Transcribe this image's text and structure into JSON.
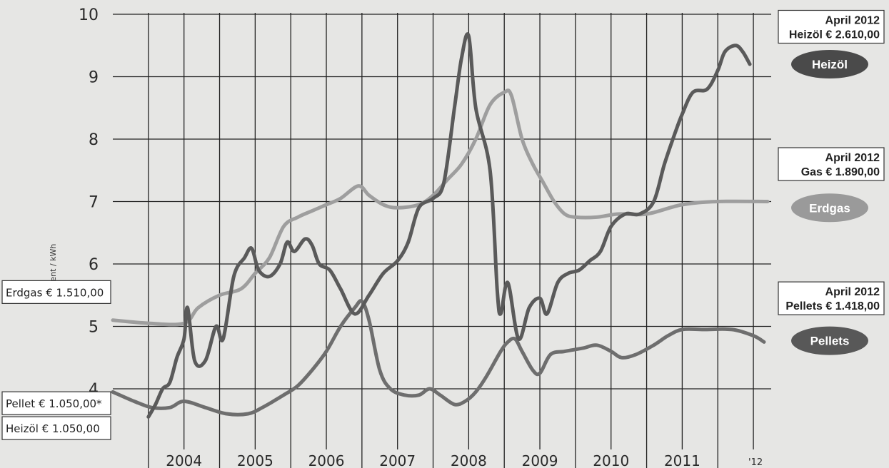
{
  "chart_data": {
    "type": "line",
    "ylabel": "Cent / kWh",
    "ylim": [
      3.5,
      10
    ],
    "y_ticks": [
      4,
      5,
      6,
      7,
      8,
      9,
      10
    ],
    "x_tick_labels": [
      "2004",
      "2005",
      "2006",
      "2007",
      "2008",
      "2009",
      "2010",
      "2011",
      "'12"
    ],
    "grid": true,
    "series": [
      {
        "name": "Heizöl",
        "color": "#5a5a5a",
        "points": [
          [
            2003.5,
            3.55
          ],
          [
            2003.6,
            3.75
          ],
          [
            2003.7,
            4.0
          ],
          [
            2003.8,
            4.1
          ],
          [
            2003.9,
            4.5
          ],
          [
            2004.0,
            4.8
          ],
          [
            2004.05,
            5.3
          ],
          [
            2004.15,
            4.45
          ],
          [
            2004.3,
            4.45
          ],
          [
            2004.45,
            5.0
          ],
          [
            2004.55,
            4.8
          ],
          [
            2004.7,
            5.8
          ],
          [
            2004.85,
            6.1
          ],
          [
            2004.95,
            6.25
          ],
          [
            2005.05,
            5.9
          ],
          [
            2005.2,
            5.8
          ],
          [
            2005.35,
            6.0
          ],
          [
            2005.45,
            6.35
          ],
          [
            2005.55,
            6.2
          ],
          [
            2005.7,
            6.4
          ],
          [
            2005.8,
            6.3
          ],
          [
            2005.9,
            6.0
          ],
          [
            2006.05,
            5.9
          ],
          [
            2006.2,
            5.6
          ],
          [
            2006.4,
            5.2
          ],
          [
            2006.6,
            5.5
          ],
          [
            2006.8,
            5.85
          ],
          [
            2007.0,
            6.05
          ],
          [
            2007.15,
            6.35
          ],
          [
            2007.3,
            6.9
          ],
          [
            2007.5,
            7.05
          ],
          [
            2007.65,
            7.3
          ],
          [
            2007.8,
            8.5
          ],
          [
            2007.9,
            9.3
          ],
          [
            2008.0,
            9.65
          ],
          [
            2008.1,
            8.5
          ],
          [
            2008.3,
            7.5
          ],
          [
            2008.4,
            5.6
          ],
          [
            2008.45,
            5.2
          ],
          [
            2008.55,
            5.7
          ],
          [
            2008.7,
            4.8
          ],
          [
            2008.85,
            5.3
          ],
          [
            2009.0,
            5.45
          ],
          [
            2009.1,
            5.2
          ],
          [
            2009.25,
            5.7
          ],
          [
            2009.4,
            5.85
          ],
          [
            2009.55,
            5.9
          ],
          [
            2009.7,
            6.05
          ],
          [
            2009.85,
            6.2
          ],
          [
            2010.0,
            6.6
          ],
          [
            2010.2,
            6.8
          ],
          [
            2010.4,
            6.8
          ],
          [
            2010.6,
            7.0
          ],
          [
            2010.75,
            7.6
          ],
          [
            2010.9,
            8.1
          ],
          [
            2011.0,
            8.4
          ],
          [
            2011.15,
            8.75
          ],
          [
            2011.35,
            8.8
          ],
          [
            2011.5,
            9.1
          ],
          [
            2011.6,
            9.4
          ],
          [
            2011.75,
            9.5
          ],
          [
            2011.85,
            9.4
          ],
          [
            2011.95,
            9.2
          ]
        ]
      },
      {
        "name": "Erdgas",
        "color": "#9e9e9e",
        "points": [
          [
            2003.0,
            5.1
          ],
          [
            2003.5,
            5.05
          ],
          [
            2004.0,
            5.05
          ],
          [
            2004.2,
            5.3
          ],
          [
            2004.5,
            5.5
          ],
          [
            2004.8,
            5.6
          ],
          [
            2005.0,
            5.85
          ],
          [
            2005.2,
            6.1
          ],
          [
            2005.4,
            6.6
          ],
          [
            2005.6,
            6.75
          ],
          [
            2005.8,
            6.85
          ],
          [
            2006.0,
            6.95
          ],
          [
            2006.2,
            7.05
          ],
          [
            2006.45,
            7.25
          ],
          [
            2006.6,
            7.1
          ],
          [
            2006.8,
            6.95
          ],
          [
            2007.0,
            6.9
          ],
          [
            2007.3,
            6.95
          ],
          [
            2007.5,
            7.1
          ],
          [
            2007.7,
            7.35
          ],
          [
            2007.9,
            7.6
          ],
          [
            2008.1,
            8.0
          ],
          [
            2008.3,
            8.55
          ],
          [
            2008.5,
            8.75
          ],
          [
            2008.6,
            8.7
          ],
          [
            2008.75,
            8.0
          ],
          [
            2008.9,
            7.6
          ],
          [
            2009.05,
            7.3
          ],
          [
            2009.2,
            7.0
          ],
          [
            2009.35,
            6.8
          ],
          [
            2009.5,
            6.75
          ],
          [
            2009.8,
            6.75
          ],
          [
            2010.1,
            6.8
          ],
          [
            2010.5,
            6.8
          ],
          [
            2011.0,
            6.95
          ],
          [
            2011.5,
            7.0
          ],
          [
            2012.2,
            7.0
          ]
        ]
      },
      {
        "name": "Pellets",
        "color": "#6e6e6e",
        "points": [
          [
            2003.0,
            3.95
          ],
          [
            2003.3,
            3.8
          ],
          [
            2003.55,
            3.7
          ],
          [
            2003.8,
            3.7
          ],
          [
            2004.0,
            3.8
          ],
          [
            2004.3,
            3.7
          ],
          [
            2004.6,
            3.6
          ],
          [
            2004.9,
            3.6
          ],
          [
            2005.1,
            3.7
          ],
          [
            2005.4,
            3.9
          ],
          [
            2005.6,
            4.05
          ],
          [
            2005.8,
            4.3
          ],
          [
            2006.0,
            4.6
          ],
          [
            2006.2,
            5.0
          ],
          [
            2006.4,
            5.3
          ],
          [
            2006.5,
            5.4
          ],
          [
            2006.6,
            5.1
          ],
          [
            2006.75,
            4.3
          ],
          [
            2006.9,
            4.0
          ],
          [
            2007.1,
            3.9
          ],
          [
            2007.3,
            3.9
          ],
          [
            2007.45,
            4.0
          ],
          [
            2007.6,
            3.9
          ],
          [
            2007.8,
            3.75
          ],
          [
            2007.95,
            3.8
          ],
          [
            2008.1,
            3.95
          ],
          [
            2008.25,
            4.2
          ],
          [
            2008.45,
            4.6
          ],
          [
            2008.55,
            4.75
          ],
          [
            2008.65,
            4.8
          ],
          [
            2008.75,
            4.6
          ],
          [
            2008.9,
            4.3
          ],
          [
            2009.0,
            4.25
          ],
          [
            2009.15,
            4.55
          ],
          [
            2009.35,
            4.6
          ],
          [
            2009.6,
            4.65
          ],
          [
            2009.8,
            4.7
          ],
          [
            2010.0,
            4.6
          ],
          [
            2010.15,
            4.5
          ],
          [
            2010.35,
            4.55
          ],
          [
            2010.6,
            4.7
          ],
          [
            2010.8,
            4.85
          ],
          [
            2011.0,
            4.95
          ],
          [
            2011.3,
            4.95
          ],
          [
            2011.7,
            4.95
          ],
          [
            2012.0,
            4.85
          ],
          [
            2012.15,
            4.75
          ]
        ]
      }
    ],
    "annotations": {
      "left": [
        {
          "text": "Erdgas € 1.510,00",
          "y": 5.55
        },
        {
          "text": "Pellet € 1.050,00*",
          "y": 3.77
        },
        {
          "text": "Heizöl € 1.050,00",
          "y": 3.37
        }
      ],
      "right": [
        {
          "line1": "April 2012",
          "line2": "Heizöl € 2.610,00",
          "y": 9.8
        },
        {
          "line1": "April 2012",
          "line2": "Gas € 1.890,00",
          "y": 7.6
        },
        {
          "line1": "April 2012",
          "line2": "Pellets € 1.418,00",
          "y": 5.45
        }
      ]
    },
    "legend": [
      {
        "name": "Heizöl",
        "color": "#4a4a4a",
        "y": 9.2
      },
      {
        "name": "Erdgas",
        "color": "#9a9a9a",
        "y": 6.9
      },
      {
        "name": "Pellets",
        "color": "#585858",
        "y": 4.77
      }
    ]
  }
}
